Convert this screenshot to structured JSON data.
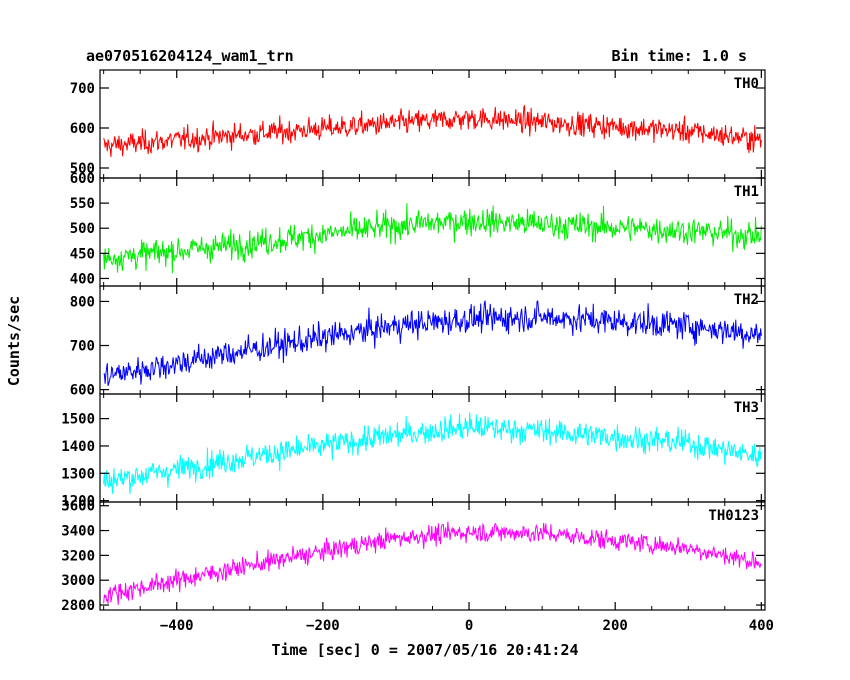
{
  "header": {
    "title": "ae070516204124_wam1_trn",
    "bin_time": "Bin time: 1.0 s"
  },
  "chart_data": {
    "type": "line",
    "xlabel": "Time [sec] 0 = 2007/05/16 20:41:24",
    "ylabel": "Counts/sec",
    "xlim": [
      -505,
      405
    ],
    "xticks": [
      -400,
      -200,
      0,
      200,
      400
    ],
    "xtick_labels": [
      "−400",
      "−200",
      "0",
      "200",
      "400"
    ],
    "panels": [
      {
        "name": "TH0",
        "color": "#ff0000",
        "ylim": [
          475,
          745
        ],
        "yticks": [
          500,
          600,
          700
        ],
        "yticks_labels": [
          "500",
          "600",
          "700"
        ],
        "trend": [
          [
            -500,
            555
          ],
          [
            -300,
            585
          ],
          [
            -100,
            612
          ],
          [
            0,
            625
          ],
          [
            100,
            615
          ],
          [
            300,
            592
          ],
          [
            400,
            570
          ]
        ],
        "noise": 28
      },
      {
        "name": "TH1",
        "color": "#00ee00",
        "ylim": [
          385,
          600
        ],
        "yticks": [
          400,
          450,
          500,
          550,
          600
        ],
        "yticks_labels": [
          "400",
          "450",
          "500",
          "550",
          "600"
        ],
        "trend": [
          [
            -500,
            440
          ],
          [
            -300,
            470
          ],
          [
            -100,
            505
          ],
          [
            0,
            515
          ],
          [
            100,
            508
          ],
          [
            300,
            495
          ],
          [
            400,
            485
          ]
        ],
        "noise": 26
      },
      {
        "name": "TH2",
        "color": "#0000ff",
        "ylim": [
          590,
          835
        ],
        "yticks": [
          600,
          700,
          800
        ],
        "yticks_labels": [
          "600",
          "700",
          "800"
        ],
        "trend": [
          [
            -500,
            630
          ],
          [
            -300,
            690
          ],
          [
            -100,
            745
          ],
          [
            0,
            760
          ],
          [
            100,
            765
          ],
          [
            300,
            745
          ],
          [
            400,
            725
          ]
        ],
        "noise": 30
      },
      {
        "name": "TH3",
        "color": "#00ffff",
        "ylim": [
          1195,
          1590
        ],
        "yticks": [
          1200,
          1300,
          1400,
          1500
        ],
        "yticks_labels": [
          "1200",
          "1300",
          "1400",
          "1500"
        ],
        "trend": [
          [
            -500,
            1270
          ],
          [
            -300,
            1360
          ],
          [
            -100,
            1440
          ],
          [
            0,
            1470
          ],
          [
            100,
            1455
          ],
          [
            300,
            1410
          ],
          [
            400,
            1360
          ]
        ],
        "noise": 45
      },
      {
        "name": "TH0123",
        "color": "#ff00ff",
        "ylim": [
          2760,
          3630
        ],
        "yticks": [
          2800,
          3000,
          3200,
          3400,
          3600
        ],
        "yticks_labels": [
          "2800",
          "3000",
          "3200",
          "3400",
          "3600"
        ],
        "trend": [
          [
            -500,
            2880
          ],
          [
            -300,
            3120
          ],
          [
            -100,
            3340
          ],
          [
            0,
            3390
          ],
          [
            100,
            3380
          ],
          [
            300,
            3260
          ],
          [
            400,
            3140
          ]
        ],
        "noise": 75
      }
    ]
  }
}
